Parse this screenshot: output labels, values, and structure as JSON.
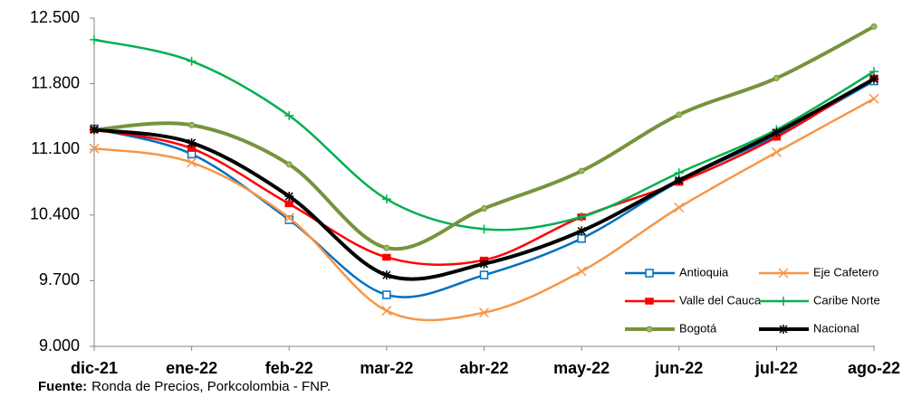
{
  "chart_data": {
    "type": "line",
    "categories": [
      "dic-21",
      "ene-22",
      "feb-22",
      "mar-22",
      "abr-22",
      "may-22",
      "jun-22",
      "jul-22",
      "ago-22"
    ],
    "series": [
      {
        "name": "Antioquia",
        "color": "#0070c0",
        "marker": "square",
        "values": [
          11320,
          11050,
          10350,
          9550,
          9760,
          10150,
          10760,
          11250,
          11830
        ]
      },
      {
        "name": "Eje Cafetero",
        "color": "#f79646",
        "marker": "x",
        "values": [
          11110,
          10960,
          10370,
          9380,
          9360,
          9800,
          10480,
          11070,
          11640
        ]
      },
      {
        "name": "Valle del Cauca",
        "color": "#ff0000",
        "marker": "dash",
        "values": [
          11310,
          11110,
          10520,
          9950,
          9920,
          10380,
          10750,
          11230,
          11860
        ]
      },
      {
        "name": "Caribe Norte",
        "color": "#00b050",
        "marker": "plus",
        "values": [
          12270,
          12040,
          11460,
          10570,
          10250,
          10380,
          10850,
          11310,
          11930
        ]
      },
      {
        "name": "Bogotá",
        "color": "#77933c",
        "marker": "circle",
        "values": [
          11310,
          11360,
          10940,
          10050,
          10470,
          10870,
          11470,
          11860,
          12410
        ]
      },
      {
        "name": "Nacional",
        "color": "#000000",
        "marker": "star",
        "values": [
          11310,
          11170,
          10600,
          9760,
          9880,
          10230,
          10770,
          11280,
          11850
        ]
      }
    ],
    "ylim": [
      9000,
      12500
    ],
    "yticks": [
      {
        "value": 9000,
        "label": "9.000"
      },
      {
        "value": 9700,
        "label": "9.700"
      },
      {
        "value": 10400,
        "label": "10.400"
      },
      {
        "value": 11100,
        "label": "11.100"
      },
      {
        "value": 11800,
        "label": "11.800"
      },
      {
        "value": 12500,
        "label": "12.500"
      }
    ],
    "grid": false,
    "legend": "lower-right",
    "source_label": "Fuente:",
    "source": "Ronda de Precios, Porkcolombia  - FNP."
  }
}
